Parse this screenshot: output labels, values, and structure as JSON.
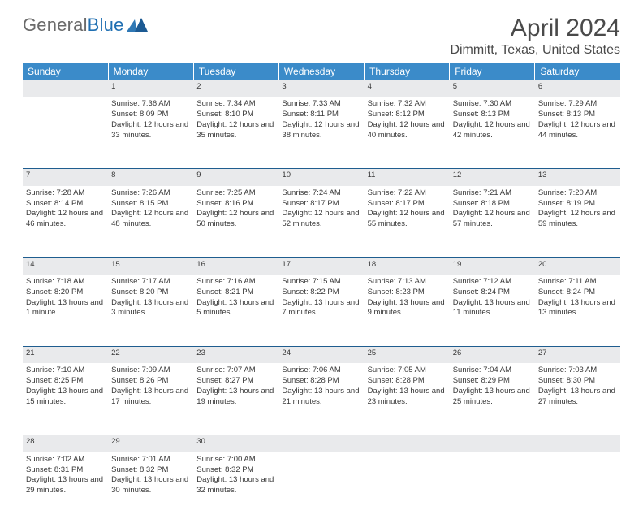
{
  "brand": {
    "part1": "General",
    "part2": "Blue"
  },
  "title": "April 2024",
  "location": "Dimmitt, Texas, United States",
  "colors": {
    "header_bg": "#3b8bc9",
    "header_text": "#ffffff",
    "daynum_bg": "#e9eaec",
    "row_divider": "#1f5d8f",
    "body_text": "#383838",
    "title_text": "#4a4a4a",
    "logo_gray": "#6b6b6b",
    "logo_blue": "#1f6fb2"
  },
  "weekdays": [
    "Sunday",
    "Monday",
    "Tuesday",
    "Wednesday",
    "Thursday",
    "Friday",
    "Saturday"
  ],
  "weeks": [
    [
      null,
      {
        "n": "1",
        "sr": "7:36 AM",
        "ss": "8:09 PM",
        "dl": "12 hours and 33 minutes."
      },
      {
        "n": "2",
        "sr": "7:34 AM",
        "ss": "8:10 PM",
        "dl": "12 hours and 35 minutes."
      },
      {
        "n": "3",
        "sr": "7:33 AM",
        "ss": "8:11 PM",
        "dl": "12 hours and 38 minutes."
      },
      {
        "n": "4",
        "sr": "7:32 AM",
        "ss": "8:12 PM",
        "dl": "12 hours and 40 minutes."
      },
      {
        "n": "5",
        "sr": "7:30 AM",
        "ss": "8:13 PM",
        "dl": "12 hours and 42 minutes."
      },
      {
        "n": "6",
        "sr": "7:29 AM",
        "ss": "8:13 PM",
        "dl": "12 hours and 44 minutes."
      }
    ],
    [
      {
        "n": "7",
        "sr": "7:28 AM",
        "ss": "8:14 PM",
        "dl": "12 hours and 46 minutes."
      },
      {
        "n": "8",
        "sr": "7:26 AM",
        "ss": "8:15 PM",
        "dl": "12 hours and 48 minutes."
      },
      {
        "n": "9",
        "sr": "7:25 AM",
        "ss": "8:16 PM",
        "dl": "12 hours and 50 minutes."
      },
      {
        "n": "10",
        "sr": "7:24 AM",
        "ss": "8:17 PM",
        "dl": "12 hours and 52 minutes."
      },
      {
        "n": "11",
        "sr": "7:22 AM",
        "ss": "8:17 PM",
        "dl": "12 hours and 55 minutes."
      },
      {
        "n": "12",
        "sr": "7:21 AM",
        "ss": "8:18 PM",
        "dl": "12 hours and 57 minutes."
      },
      {
        "n": "13",
        "sr": "7:20 AM",
        "ss": "8:19 PM",
        "dl": "12 hours and 59 minutes."
      }
    ],
    [
      {
        "n": "14",
        "sr": "7:18 AM",
        "ss": "8:20 PM",
        "dl": "13 hours and 1 minute."
      },
      {
        "n": "15",
        "sr": "7:17 AM",
        "ss": "8:20 PM",
        "dl": "13 hours and 3 minutes."
      },
      {
        "n": "16",
        "sr": "7:16 AM",
        "ss": "8:21 PM",
        "dl": "13 hours and 5 minutes."
      },
      {
        "n": "17",
        "sr": "7:15 AM",
        "ss": "8:22 PM",
        "dl": "13 hours and 7 minutes."
      },
      {
        "n": "18",
        "sr": "7:13 AM",
        "ss": "8:23 PM",
        "dl": "13 hours and 9 minutes."
      },
      {
        "n": "19",
        "sr": "7:12 AM",
        "ss": "8:24 PM",
        "dl": "13 hours and 11 minutes."
      },
      {
        "n": "20",
        "sr": "7:11 AM",
        "ss": "8:24 PM",
        "dl": "13 hours and 13 minutes."
      }
    ],
    [
      {
        "n": "21",
        "sr": "7:10 AM",
        "ss": "8:25 PM",
        "dl": "13 hours and 15 minutes."
      },
      {
        "n": "22",
        "sr": "7:09 AM",
        "ss": "8:26 PM",
        "dl": "13 hours and 17 minutes."
      },
      {
        "n": "23",
        "sr": "7:07 AM",
        "ss": "8:27 PM",
        "dl": "13 hours and 19 minutes."
      },
      {
        "n": "24",
        "sr": "7:06 AM",
        "ss": "8:28 PM",
        "dl": "13 hours and 21 minutes."
      },
      {
        "n": "25",
        "sr": "7:05 AM",
        "ss": "8:28 PM",
        "dl": "13 hours and 23 minutes."
      },
      {
        "n": "26",
        "sr": "7:04 AM",
        "ss": "8:29 PM",
        "dl": "13 hours and 25 minutes."
      },
      {
        "n": "27",
        "sr": "7:03 AM",
        "ss": "8:30 PM",
        "dl": "13 hours and 27 minutes."
      }
    ],
    [
      {
        "n": "28",
        "sr": "7:02 AM",
        "ss": "8:31 PM",
        "dl": "13 hours and 29 minutes."
      },
      {
        "n": "29",
        "sr": "7:01 AM",
        "ss": "8:32 PM",
        "dl": "13 hours and 30 minutes."
      },
      {
        "n": "30",
        "sr": "7:00 AM",
        "ss": "8:32 PM",
        "dl": "13 hours and 32 minutes."
      },
      null,
      null,
      null,
      null
    ]
  ],
  "labels": {
    "sunrise": "Sunrise:",
    "sunset": "Sunset:",
    "daylight": "Daylight:"
  }
}
